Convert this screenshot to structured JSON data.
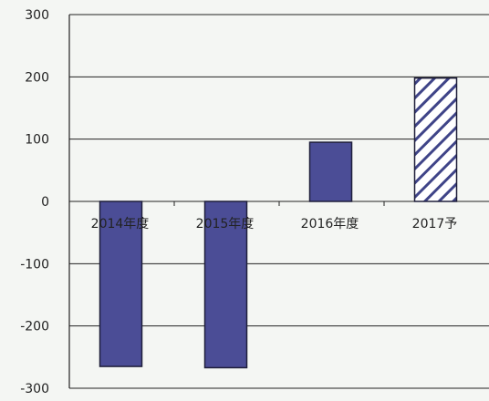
{
  "chart_data": {
    "type": "bar",
    "categories": [
      "2014年度",
      "2015年度",
      "2016年度",
      "2017予"
    ],
    "values": [
      -265,
      -267,
      95,
      198
    ],
    "hatched": [
      false,
      false,
      false,
      true
    ],
    "ylim": [
      -300,
      300
    ],
    "yticks": [
      "300",
      "200",
      "100",
      "0",
      "-100",
      "-200",
      "-300"
    ],
    "ytick_values": [
      300,
      200,
      100,
      0,
      -100,
      -200,
      -300
    ],
    "title": "",
    "xlabel": "",
    "ylabel": "",
    "grid": true,
    "colors": {
      "bar_fill": "#4b4d96",
      "bar_stroke": "#1e1e3a",
      "hatch_line": "#3f4488",
      "grid": "#222222",
      "background": "#f4f6f3"
    }
  }
}
